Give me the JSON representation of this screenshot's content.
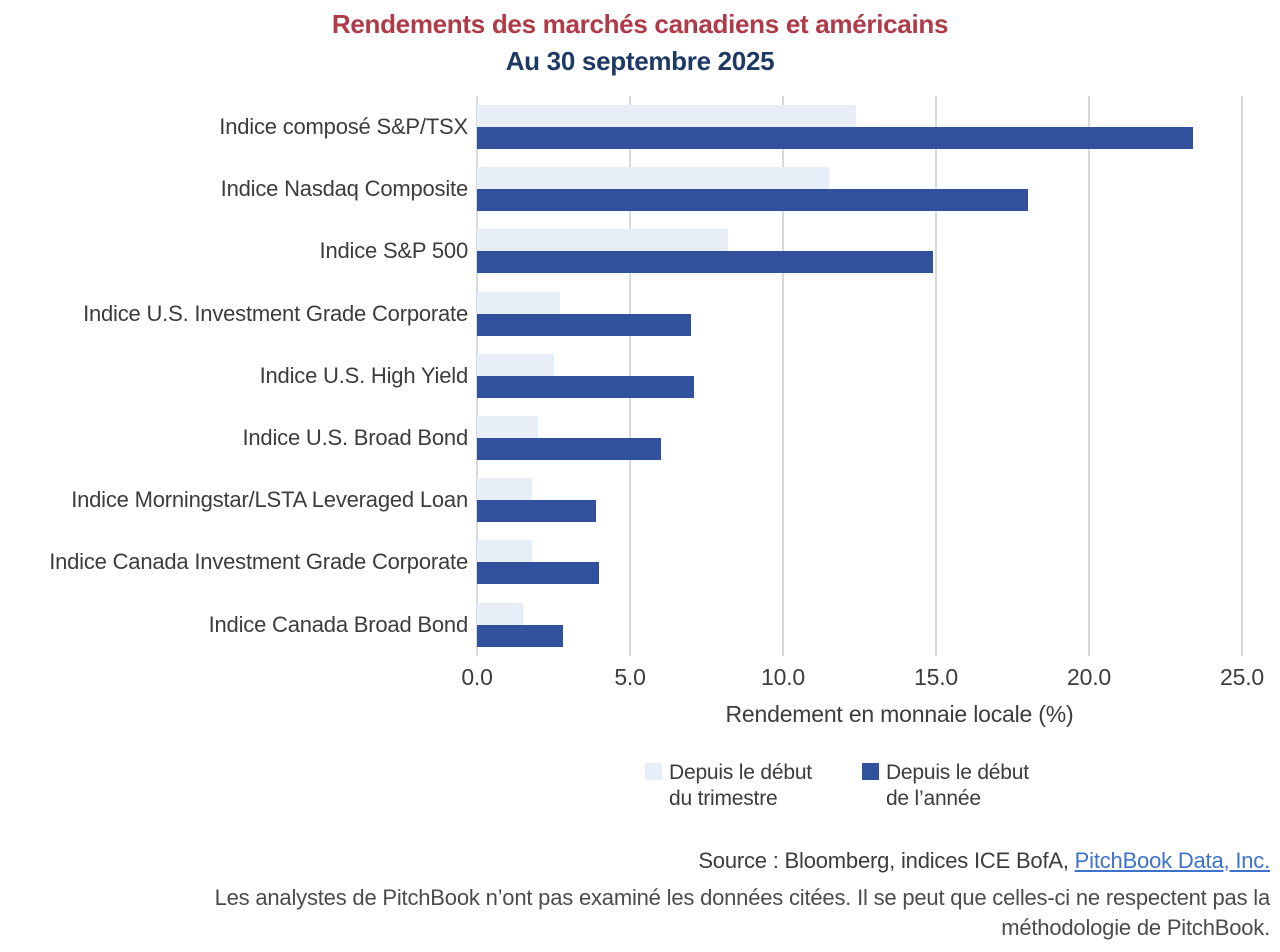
{
  "title": "Rendements des marchés canadiens et américains",
  "subtitle": "Au 30 septembre 2025",
  "colors": {
    "title": "#B13A48",
    "subtitle": "#1D3A66",
    "qtd_bar": "#E8EEF7",
    "ytd_bar": "#31519D",
    "gridline": "#D9D9D9",
    "text": "#3C3C3C",
    "link": "#3D72CC"
  },
  "chart_data": {
    "type": "bar",
    "orientation": "horizontal",
    "title": "Rendements des marchés canadiens et américains — Au 30 septembre 2025",
    "xlabel": "Rendement en monnaie locale (%)",
    "ylabel": "",
    "xlim": [
      0,
      25
    ],
    "xticks": [
      "0.0",
      "5.0",
      "10.0",
      "15.0",
      "20.0",
      "25.0"
    ],
    "xtick_values": [
      0,
      5,
      10,
      15,
      20,
      25
    ],
    "grid": "vertical",
    "legend_position": "bottom",
    "categories": [
      "Indice composé S&P/TSX",
      "Indice Nasdaq Composite",
      "Indice S&P 500",
      "Indice U.S. Investment Grade Corporate",
      "Indice U.S. High Yield",
      "Indice U.S. Broad Bond",
      "Indice Morningstar/LSTA Leveraged Loan",
      "Indice Canada Investment Grade Corporate",
      "Indice Canada Broad Bond"
    ],
    "series": [
      {
        "name": "Depuis le début du trimestre",
        "color_key": "qtd_bar",
        "values": [
          12.4,
          11.5,
          8.2,
          2.7,
          2.5,
          2.0,
          1.8,
          1.8,
          1.5
        ]
      },
      {
        "name": "Depuis le début de l’année",
        "color_key": "ytd_bar",
        "values": [
          23.4,
          18.0,
          14.9,
          7.0,
          7.1,
          6.0,
          3.9,
          4.0,
          2.8
        ]
      }
    ]
  },
  "legend": {
    "items": [
      {
        "line1": "Depuis le début",
        "line2": "du trimestre",
        "color_key": "qtd_bar"
      },
      {
        "line1": "Depuis le début",
        "line2": "de l’année",
        "color_key": "ytd_bar"
      }
    ]
  },
  "footer": {
    "source_prefix": "Source : Bloomberg, indices ICE BofA, ",
    "source_link": "PitchBook Data, Inc.",
    "disclaimer_line1": "Les analystes de PitchBook n’ont pas examiné les données citées. Il se peut que celles-ci ne respectent pas la",
    "disclaimer_line2": "méthodologie de PitchBook."
  }
}
